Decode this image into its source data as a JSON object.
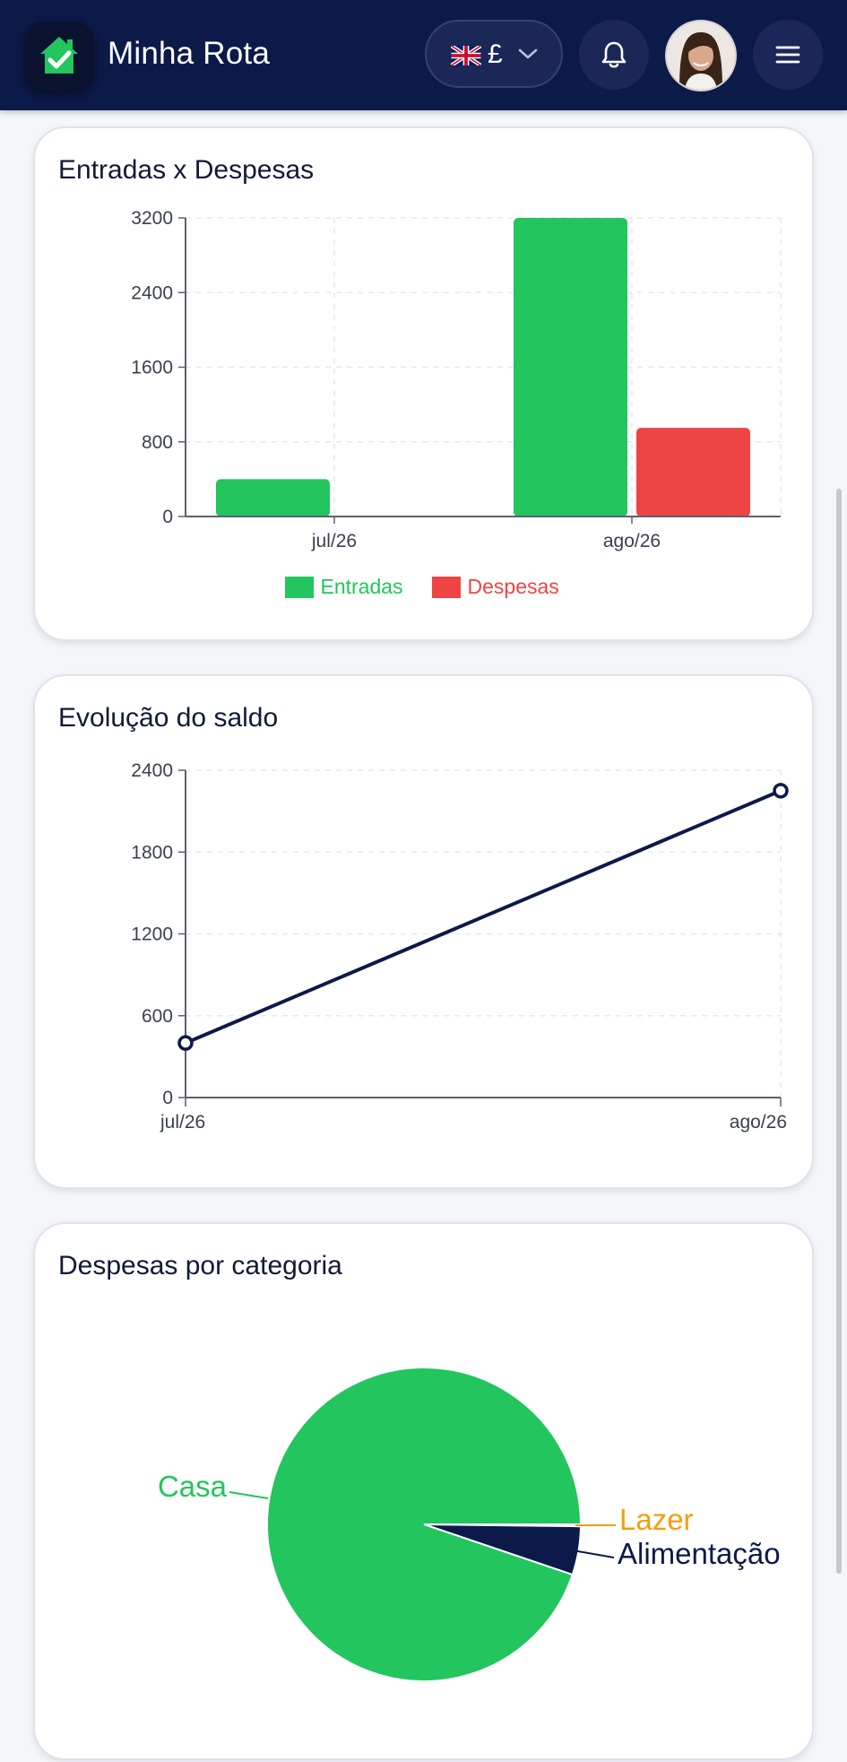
{
  "header": {
    "app_title": "Minha Rota",
    "currency_symbol": "£",
    "icons": {
      "logo": "house-check-icon",
      "flag": "uk-flag-icon",
      "dropdown": "chevron-down-icon",
      "notifications": "bell-icon",
      "menu": "hamburger-menu-icon"
    }
  },
  "colors": {
    "navy": "#0c1a4a",
    "green": "#22c55e",
    "red": "#ef4444",
    "orange": "#f59e0b"
  },
  "cards": {
    "income_expense": {
      "title": "Entradas x Despesas"
    },
    "balance": {
      "title": "Evolução do saldo"
    },
    "category": {
      "title": "Despesas por categoria"
    }
  },
  "chart_data": [
    {
      "type": "bar",
      "title": "Entradas x Despesas",
      "categories": [
        "jul/26",
        "ago/26"
      ],
      "series": [
        {
          "name": "Entradas",
          "color": "#22c55e",
          "values": [
            400,
            3200
          ]
        },
        {
          "name": "Despesas",
          "color": "#ef4444",
          "values": [
            0,
            950
          ]
        }
      ],
      "yticks": [
        0,
        800,
        1600,
        2400,
        3200
      ],
      "ylim": [
        0,
        3200
      ],
      "grid": true,
      "legend": "bottom"
    },
    {
      "type": "line",
      "title": "Evolução do saldo",
      "x": [
        "jul/26",
        "ago/26"
      ],
      "series": [
        {
          "color": "#0c1a4a",
          "values": [
            400,
            2250
          ]
        }
      ],
      "yticks": [
        0,
        600,
        1200,
        1800,
        2400
      ],
      "ylim": [
        0,
        2400
      ],
      "grid": true
    },
    {
      "type": "pie",
      "title": "Despesas por categoria",
      "slices": [
        {
          "label": "Casa",
          "value": 94.8,
          "color": "#22c55e"
        },
        {
          "label": "Lazer",
          "value": 0.2,
          "color": "#f59e0b"
        },
        {
          "label": "Alimentação",
          "value": 5.0,
          "color": "#0c1a4a"
        }
      ]
    }
  ]
}
